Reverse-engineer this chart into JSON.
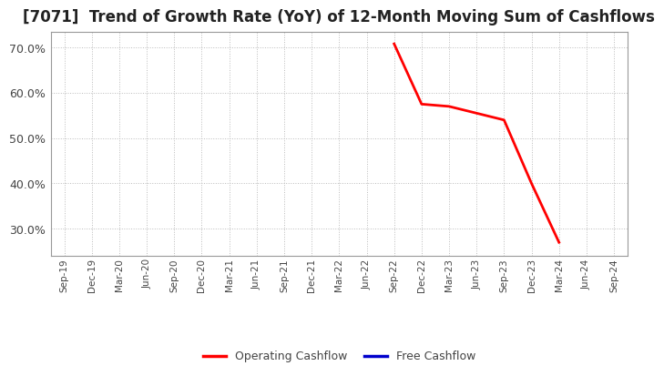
{
  "title": "[7071]  Trend of Growth Rate (YoY) of 12-Month Moving Sum of Cashflows",
  "title_fontsize": 12,
  "background_color": "#ffffff",
  "plot_bg_color": "#ffffff",
  "grid_color": "#bbbbbb",
  "x_labels": [
    "Sep-19",
    "Dec-19",
    "Mar-20",
    "Jun-20",
    "Sep-20",
    "Dec-20",
    "Mar-21",
    "Jun-21",
    "Sep-21",
    "Dec-21",
    "Mar-22",
    "Jun-22",
    "Sep-22",
    "Dec-22",
    "Mar-23",
    "Jun-23",
    "Sep-23",
    "Dec-23",
    "Mar-24",
    "Jun-24",
    "Sep-24"
  ],
  "operating_cf_x": [
    "Sep-22",
    "Dec-22",
    "Mar-23",
    "Jun-23",
    "Sep-23",
    "Dec-23",
    "Mar-24"
  ],
  "operating_cf_y": [
    70.8,
    57.5,
    57.0,
    55.5,
    54.0,
    40.0,
    27.0
  ],
  "free_cf_x": [],
  "free_cf_y": [],
  "ylim_min": 24.0,
  "ylim_max": 73.5,
  "yticks": [
    30.0,
    40.0,
    50.0,
    60.0,
    70.0
  ],
  "op_cf_color": "#ff0000",
  "free_cf_color": "#0000cc",
  "legend_op_label": "Operating Cashflow",
  "legend_free_label": "Free Cashflow",
  "line_width": 2.0
}
